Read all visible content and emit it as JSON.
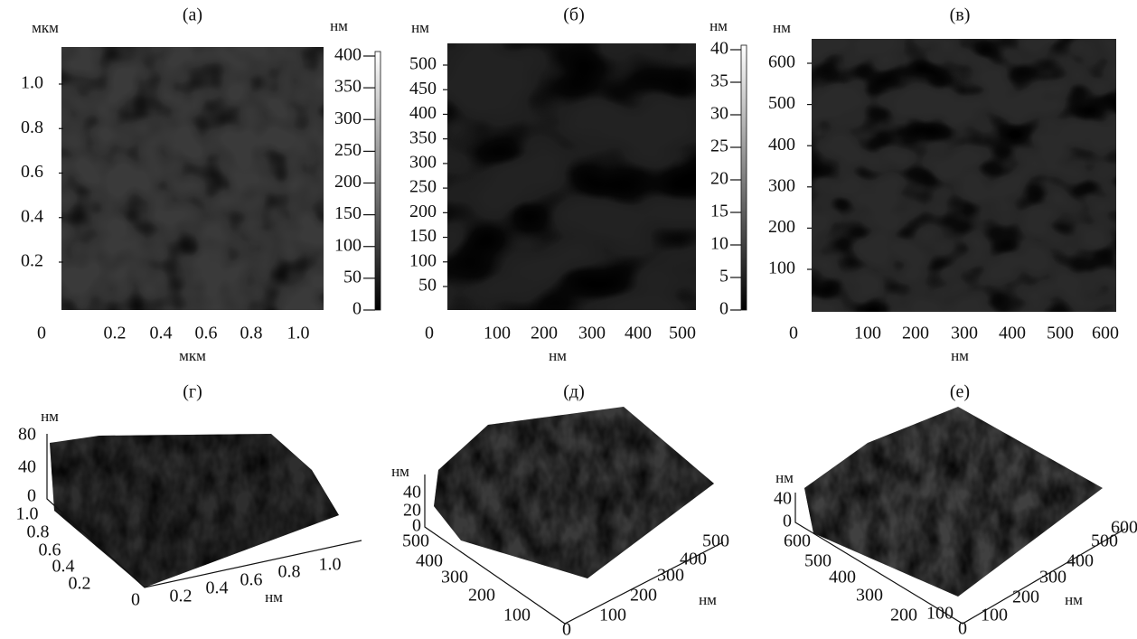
{
  "panels": [
    {
      "label": "(а)",
      "y_unit": "мкм",
      "x_unit": "мкм",
      "yticks": [
        "0.2",
        "0.4",
        "0.6",
        "0.8",
        "1.0"
      ],
      "xticks": [
        "0",
        "0.2",
        "0.4",
        "0.6",
        "0.8",
        "1.0"
      ],
      "colorbar_unit": "нм",
      "colorbar_ticks": [
        "400",
        "350",
        "300",
        "250",
        "200",
        "150",
        "100",
        "50",
        "0"
      ]
    },
    {
      "label": "(б)",
      "y_unit": "нм",
      "x_unit": "нм",
      "yticks": [
        "50",
        "100",
        "150",
        "200",
        "250",
        "300",
        "350",
        "400",
        "450",
        "500"
      ],
      "xticks": [
        "0",
        "100",
        "200",
        "300",
        "400",
        "500"
      ],
      "colorbar_unit": "нм",
      "colorbar_ticks": [
        "40",
        "35",
        "30",
        "25",
        "20",
        "15",
        "10",
        "5",
        "0"
      ]
    },
    {
      "label": "(в)",
      "y_unit": "нм",
      "x_unit": "нм",
      "yticks": [
        "100",
        "200",
        "300",
        "400",
        "500",
        "600"
      ],
      "xticks": [
        "0",
        "100",
        "200",
        "300",
        "400",
        "500",
        "600"
      ]
    },
    {
      "label": "(г)",
      "z_unit": "нм",
      "zticks": [
        "80",
        "40",
        "0"
      ],
      "yticks": [
        "1.0",
        "0.8",
        "0.6",
        "0.4",
        "0.2",
        "0"
      ],
      "xticks": [
        "0.2",
        "0.4",
        "0.6",
        "0.8",
        "1.0"
      ],
      "x_unit": "нм"
    },
    {
      "label": "(д)",
      "z_unit": "нм",
      "zticks": [
        "40",
        "20",
        "0"
      ],
      "yticks": [
        "500",
        "400",
        "300",
        "200",
        "100",
        "0"
      ],
      "xticks": [
        "100",
        "200",
        "300",
        "400",
        "500"
      ],
      "x_unit": "нм"
    },
    {
      "label": "(е)",
      "z_unit": "нм",
      "zticks": [
        "40",
        "0"
      ],
      "yticks": [
        "600",
        "500",
        "400",
        "300",
        "200",
        "100",
        "0"
      ],
      "xticks": [
        "100",
        "200",
        "300",
        "400",
        "500",
        "600"
      ],
      "x_unit": "нм"
    }
  ]
}
